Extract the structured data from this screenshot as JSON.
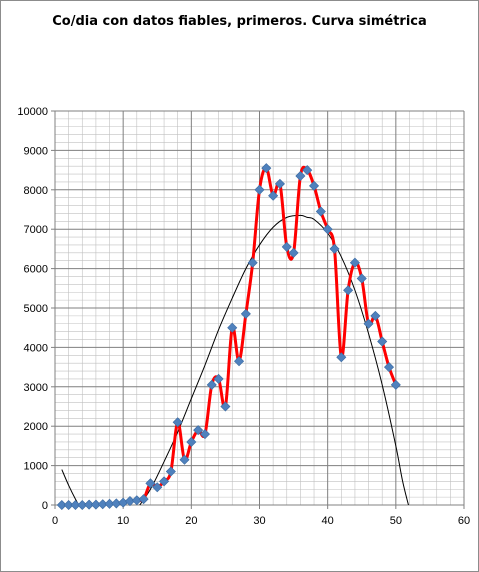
{
  "chart_data": {
    "type": "line",
    "title": "Co/dia con datos fiables, primeros. Curva simétrica",
    "xlim": [
      0,
      60
    ],
    "ylim": [
      0,
      10000
    ],
    "x_ticks": [
      0,
      10,
      20,
      30,
      40,
      50,
      60
    ],
    "y_ticks": [
      0,
      1000,
      2000,
      3000,
      4000,
      5000,
      6000,
      7000,
      8000,
      9000,
      10000
    ],
    "x_tick_labels": [
      "0",
      "10",
      "20",
      "30",
      "40",
      "50",
      "60"
    ],
    "y_tick_labels": [
      "0",
      "1000",
      "2000",
      "3000",
      "4000",
      "5000",
      "6000",
      "7000",
      "8000",
      "9000",
      "10000"
    ],
    "grid": true,
    "legend": "none",
    "series": [
      {
        "style": "red smoothed line with blue diamond markers",
        "color": "#ff0000",
        "marker_color": "#4f81bd",
        "x": [
          1,
          2,
          3,
          4,
          5,
          6,
          7,
          8,
          9,
          10,
          11,
          12,
          13,
          14,
          15,
          16,
          17,
          18,
          19,
          20,
          21,
          22,
          23,
          24,
          25,
          26,
          27,
          28,
          29,
          30,
          31,
          32,
          33,
          34,
          35,
          36,
          37,
          38,
          39,
          40,
          41,
          42,
          43,
          44,
          45,
          46,
          47,
          48,
          49,
          50
        ],
        "y": [
          0,
          0,
          0,
          0,
          10,
          10,
          20,
          30,
          40,
          60,
          100,
          120,
          150,
          550,
          450,
          600,
          850,
          2100,
          1150,
          1600,
          1900,
          1800,
          3050,
          3200,
          2500,
          4500,
          3650,
          4850,
          6150,
          8000,
          8550,
          7850,
          8150,
          6550,
          6400,
          8350,
          8500,
          8100,
          7450,
          7000,
          6500,
          3750,
          5450,
          6150,
          5750,
          4600,
          4800,
          4150,
          3500,
          3050
        ]
      },
      {
        "style": "thin black fitted symmetric curve",
        "color": "#000000",
        "x": [
          1,
          2,
          3,
          4,
          5,
          6,
          8,
          10,
          12,
          14,
          16,
          18,
          20,
          22,
          24,
          26,
          28,
          30,
          32,
          34,
          36,
          37,
          38,
          40,
          42,
          44,
          46,
          48,
          50,
          51,
          52
        ],
        "y": [
          900,
          500,
          150,
          -150,
          -400,
          -700,
          -900,
          -500,
          -100,
          400,
          1100,
          1850,
          2700,
          3550,
          4450,
          5250,
          6000,
          6600,
          7050,
          7300,
          7350,
          7300,
          7250,
          6900,
          6300,
          5450,
          4350,
          3050,
          1500,
          600,
          -100
        ]
      }
    ]
  }
}
